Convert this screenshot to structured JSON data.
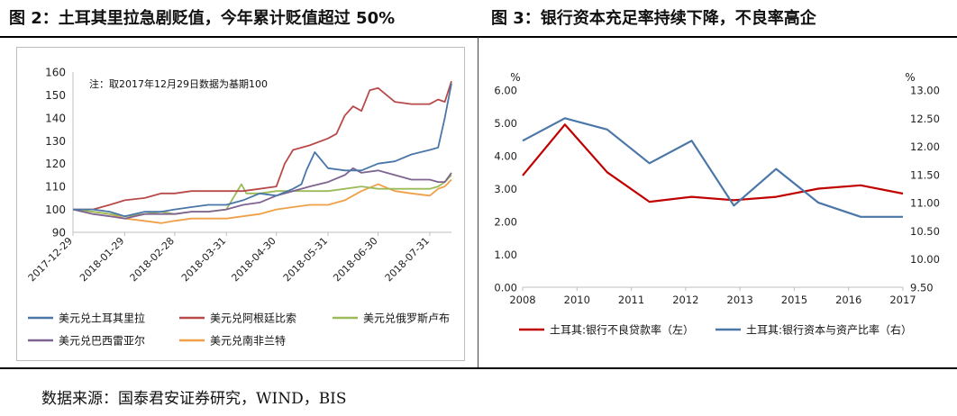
{
  "titles": {
    "left": "图 2：土耳其里拉急剧贬值，今年累计贬值超过 50%",
    "right": "图 3：银行资本充足率持续下降，不良率高企"
  },
  "source": "数据来源：国泰君安证券研究，WIND，BIS",
  "chart_data": [
    {
      "type": "line",
      "annotation": "注：取2017年12月29日数据为基期100",
      "ylim": [
        90,
        160
      ],
      "yticks": [
        "90",
        "100",
        "110",
        "120",
        "130",
        "140",
        "150",
        "160"
      ],
      "xlim": [
        "2017-12-29",
        "2018-08-13"
      ],
      "xticks": [
        "2017-12-29",
        "2018-01-29",
        "2018-02-28",
        "2018-03-31",
        "2018-04-30",
        "2018-05-31",
        "2018-06-30",
        "2018-07-31"
      ],
      "grid": false,
      "legend_position": "bottom",
      "colors": {
        "美元兑土耳其里拉": "#4a76a8",
        "美元兑阿根廷比索": "#b94a4a",
        "美元兑俄罗斯卢布": "#9bbb59",
        "美元兑巴西雷亚尔": "#7f6391",
        "美元兑南非兰特": "#f0a047"
      },
      "series": [
        {
          "name": "美元兑土耳其里拉",
          "x": [
            "2017-12-29",
            "2018-01-10",
            "2018-01-20",
            "2018-01-29",
            "2018-02-10",
            "2018-02-20",
            "2018-02-28",
            "2018-03-10",
            "2018-03-20",
            "2018-03-31",
            "2018-04-10",
            "2018-04-20",
            "2018-04-30",
            "2018-05-10",
            "2018-05-15",
            "2018-05-18",
            "2018-05-23",
            "2018-05-31",
            "2018-06-10",
            "2018-06-20",
            "2018-06-30",
            "2018-07-10",
            "2018-07-20",
            "2018-07-31",
            "2018-08-05",
            "2018-08-09",
            "2018-08-13"
          ],
          "y": [
            100,
            100,
            99,
            97,
            99,
            99,
            100,
            101,
            102,
            102,
            104,
            107,
            106,
            109,
            111,
            117,
            125,
            118,
            117,
            117,
            120,
            121,
            124,
            126,
            127,
            140,
            155
          ]
        },
        {
          "name": "美元兑阿根廷比索",
          "x": [
            "2017-12-29",
            "2018-01-10",
            "2018-01-20",
            "2018-01-29",
            "2018-02-10",
            "2018-02-20",
            "2018-02-28",
            "2018-03-10",
            "2018-03-20",
            "2018-03-31",
            "2018-04-10",
            "2018-04-20",
            "2018-04-30",
            "2018-05-05",
            "2018-05-10",
            "2018-05-20",
            "2018-05-31",
            "2018-06-05",
            "2018-06-10",
            "2018-06-15",
            "2018-06-20",
            "2018-06-25",
            "2018-06-30",
            "2018-07-10",
            "2018-07-20",
            "2018-07-31",
            "2018-08-05",
            "2018-08-09",
            "2018-08-13"
          ],
          "y": [
            100,
            100,
            102,
            104,
            105,
            107,
            107,
            108,
            108,
            108,
            108,
            109,
            110,
            120,
            126,
            128,
            131,
            133,
            141,
            145,
            143,
            152,
            153,
            147,
            146,
            146,
            148,
            147,
            156
          ]
        },
        {
          "name": "美元兑俄罗斯卢布",
          "x": [
            "2017-12-29",
            "2018-01-10",
            "2018-01-20",
            "2018-01-29",
            "2018-02-10",
            "2018-02-20",
            "2018-02-28",
            "2018-03-10",
            "2018-03-20",
            "2018-03-31",
            "2018-04-09",
            "2018-04-12",
            "2018-04-20",
            "2018-04-30",
            "2018-05-10",
            "2018-05-20",
            "2018-05-31",
            "2018-06-10",
            "2018-06-20",
            "2018-06-30",
            "2018-07-10",
            "2018-07-20",
            "2018-07-31",
            "2018-08-05",
            "2018-08-09",
            "2018-08-13"
          ],
          "y": [
            100,
            99,
            98,
            97,
            98,
            99,
            98,
            99,
            99,
            100,
            111,
            107,
            107,
            108,
            108,
            108,
            108,
            109,
            110,
            109,
            109,
            109,
            109,
            110,
            112,
            115
          ]
        },
        {
          "name": "美元兑巴西雷亚尔",
          "x": [
            "2017-12-29",
            "2018-01-10",
            "2018-01-20",
            "2018-01-29",
            "2018-02-10",
            "2018-02-20",
            "2018-02-28",
            "2018-03-10",
            "2018-03-20",
            "2018-03-31",
            "2018-04-10",
            "2018-04-20",
            "2018-04-30",
            "2018-05-10",
            "2018-05-20",
            "2018-05-31",
            "2018-06-10",
            "2018-06-15",
            "2018-06-20",
            "2018-06-30",
            "2018-07-10",
            "2018-07-20",
            "2018-07-31",
            "2018-08-05",
            "2018-08-09",
            "2018-08-13"
          ],
          "y": [
            100,
            98,
            97,
            96,
            98,
            98,
            98,
            99,
            99,
            100,
            102,
            103,
            106,
            108,
            110,
            112,
            115,
            118,
            116,
            117,
            115,
            113,
            113,
            112,
            112,
            116
          ]
        },
        {
          "name": "美元兑南非兰特",
          "x": [
            "2017-12-29",
            "2018-01-10",
            "2018-01-20",
            "2018-01-29",
            "2018-02-10",
            "2018-02-20",
            "2018-02-28",
            "2018-03-10",
            "2018-03-20",
            "2018-03-31",
            "2018-04-10",
            "2018-04-20",
            "2018-04-30",
            "2018-05-10",
            "2018-05-20",
            "2018-05-31",
            "2018-06-10",
            "2018-06-20",
            "2018-06-30",
            "2018-07-10",
            "2018-07-20",
            "2018-07-31",
            "2018-08-05",
            "2018-08-09",
            "2018-08-13"
          ],
          "y": [
            100,
            99,
            98,
            96,
            95,
            94,
            95,
            96,
            96,
            96,
            97,
            98,
            100,
            101,
            102,
            102,
            104,
            108,
            111,
            108,
            107,
            106,
            109,
            110,
            113
          ]
        }
      ]
    },
    {
      "type": "line",
      "categories": [
        "2008",
        "2010",
        "2011",
        "2012",
        "2013",
        "2015",
        "2016",
        "2017"
      ],
      "left_axis": {
        "unit": "%",
        "ylim": [
          0,
          6
        ],
        "ticks": [
          "0.00",
          "1.00",
          "2.00",
          "3.00",
          "4.00",
          "5.00",
          "6.00"
        ]
      },
      "right_axis": {
        "unit": "%",
        "ylim": [
          9.5,
          13
        ],
        "ticks": [
          "9.50",
          "10.00",
          "10.50",
          "11.00",
          "11.50",
          "12.00",
          "12.50",
          "13.00"
        ]
      },
      "grid": false,
      "legend_position": "bottom",
      "colors": {
        "土耳其:银行不良贷款率（左）": "#c00000",
        "土耳其:银行资本与资产比率（右）": "#4a76a8"
      },
      "series": [
        {
          "name": "土耳其:银行不良贷款率（左）",
          "axis": "left",
          "x": [
            2008,
            2009,
            2010,
            2011,
            2012,
            2013,
            2014,
            2015,
            2016,
            2017
          ],
          "y": [
            3.4,
            4.95,
            3.5,
            2.6,
            2.75,
            2.65,
            2.75,
            3.0,
            3.1,
            2.85
          ]
        },
        {
          "name": "土耳其:银行资本与资产比率（右）",
          "axis": "right",
          "x": [
            2008,
            2009,
            2010,
            2011,
            2012,
            2013,
            2014,
            2015,
            2016,
            2017
          ],
          "y": [
            12.1,
            12.5,
            12.3,
            11.7,
            12.1,
            10.95,
            11.6,
            11.0,
            10.75,
            10.75
          ]
        }
      ]
    }
  ]
}
